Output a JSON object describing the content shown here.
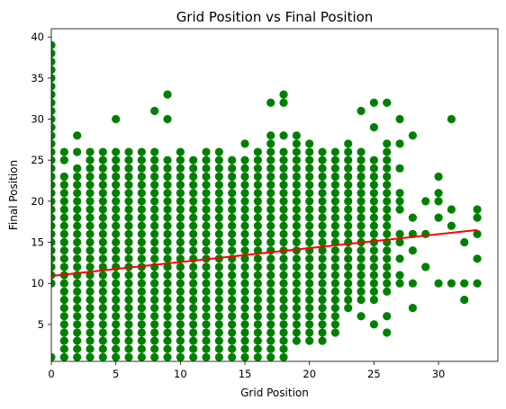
{
  "chart_data": {
    "type": "scatter",
    "title": "Grid Position vs Final Position",
    "xlabel": "Grid Position",
    "ylabel": "Final Position",
    "xlim": [
      0,
      34.6
    ],
    "ylim": [
      0.5,
      41
    ],
    "xticks": [
      0,
      5,
      10,
      15,
      20,
      25,
      30
    ],
    "yticks": [
      5,
      10,
      15,
      20,
      25,
      30,
      35,
      40
    ],
    "grid": false,
    "point_color": "#008000",
    "trend_color": "#ff0000",
    "dense_columns": [
      {
        "x": 0,
        "from": 10,
        "to": 39
      },
      {
        "x": 1,
        "from": 1,
        "to": 23
      },
      {
        "x": 2,
        "from": 1,
        "to": 24
      },
      {
        "x": 3,
        "from": 1,
        "to": 24
      },
      {
        "x": 4,
        "from": 1,
        "to": 24
      },
      {
        "x": 5,
        "from": 1,
        "to": 24
      },
      {
        "x": 6,
        "from": 1,
        "to": 26
      },
      {
        "x": 7,
        "from": 1,
        "to": 26
      },
      {
        "x": 8,
        "from": 1,
        "to": 26
      },
      {
        "x": 9,
        "from": 1,
        "to": 23
      },
      {
        "x": 10,
        "from": 1,
        "to": 26
      },
      {
        "x": 11,
        "from": 1,
        "to": 25
      },
      {
        "x": 12,
        "from": 1,
        "to": 26
      },
      {
        "x": 13,
        "from": 1,
        "to": 26
      },
      {
        "x": 14,
        "from": 1,
        "to": 25
      },
      {
        "x": 15,
        "from": 1,
        "to": 25
      },
      {
        "x": 16,
        "from": 2,
        "to": 26
      },
      {
        "x": 17,
        "from": 2,
        "to": 26
      },
      {
        "x": 18,
        "from": 2,
        "to": 26
      },
      {
        "x": 19,
        "from": 3,
        "to": 27
      },
      {
        "x": 20,
        "from": 3,
        "to": 27
      },
      {
        "x": 21,
        "from": 4,
        "to": 26
      },
      {
        "x": 22,
        "from": 4,
        "to": 25
      },
      {
        "x": 23,
        "from": 7,
        "to": 26
      },
      {
        "x": 24,
        "from": 8,
        "to": 26
      },
      {
        "x": 25,
        "from": 8,
        "to": 25
      },
      {
        "x": 26,
        "from": 9,
        "to": 25
      }
    ],
    "extra_points": [
      [
        0,
        1
      ],
      [
        2,
        26
      ],
      [
        2,
        28
      ],
      [
        1,
        25
      ],
      [
        1,
        26
      ],
      [
        3,
        25
      ],
      [
        3,
        26
      ],
      [
        4,
        25
      ],
      [
        4,
        26
      ],
      [
        5,
        25
      ],
      [
        5,
        26
      ],
      [
        5,
        30
      ],
      [
        8,
        31
      ],
      [
        9,
        24
      ],
      [
        9,
        25
      ],
      [
        9,
        30
      ],
      [
        9,
        33
      ],
      [
        11,
        1
      ],
      [
        14,
        1
      ],
      [
        15,
        27
      ],
      [
        17,
        1
      ],
      [
        17,
        32
      ],
      [
        18,
        1
      ],
      [
        18,
        28
      ],
      [
        18,
        32
      ],
      [
        18,
        33
      ],
      [
        16,
        1
      ],
      [
        17,
        27
      ],
      [
        17,
        28
      ],
      [
        19,
        28
      ],
      [
        20,
        3
      ],
      [
        21,
        3
      ],
      [
        22,
        26
      ],
      [
        23,
        27
      ],
      [
        24,
        31
      ],
      [
        24,
        6
      ],
      [
        25,
        5
      ],
      [
        25,
        29
      ],
      [
        25,
        32
      ],
      [
        26,
        4
      ],
      [
        26,
        6
      ],
      [
        26,
        26
      ],
      [
        26,
        27
      ],
      [
        26,
        32
      ],
      [
        27,
        10
      ],
      [
        27,
        11
      ],
      [
        27,
        13
      ],
      [
        27,
        15
      ],
      [
        27,
        16
      ],
      [
        27,
        19
      ],
      [
        27,
        20
      ],
      [
        27,
        21
      ],
      [
        27,
        24
      ],
      [
        27,
        27
      ],
      [
        27,
        30
      ],
      [
        28,
        7
      ],
      [
        28,
        10
      ],
      [
        28,
        14
      ],
      [
        28,
        16
      ],
      [
        28,
        18
      ],
      [
        28,
        28
      ],
      [
        29,
        12
      ],
      [
        29,
        16
      ],
      [
        29,
        20
      ],
      [
        30,
        10
      ],
      [
        30,
        18
      ],
      [
        30,
        20
      ],
      [
        30,
        21
      ],
      [
        30,
        23
      ],
      [
        31,
        10
      ],
      [
        31,
        17
      ],
      [
        31,
        19
      ],
      [
        31,
        30
      ],
      [
        32,
        8
      ],
      [
        32,
        10
      ],
      [
        32,
        15
      ],
      [
        33,
        10
      ],
      [
        33,
        13
      ],
      [
        33,
        16
      ],
      [
        33,
        18
      ],
      [
        33,
        19
      ]
    ],
    "trend_line": {
      "x": [
        0,
        33
      ],
      "y": [
        10.9,
        16.5
      ]
    }
  }
}
